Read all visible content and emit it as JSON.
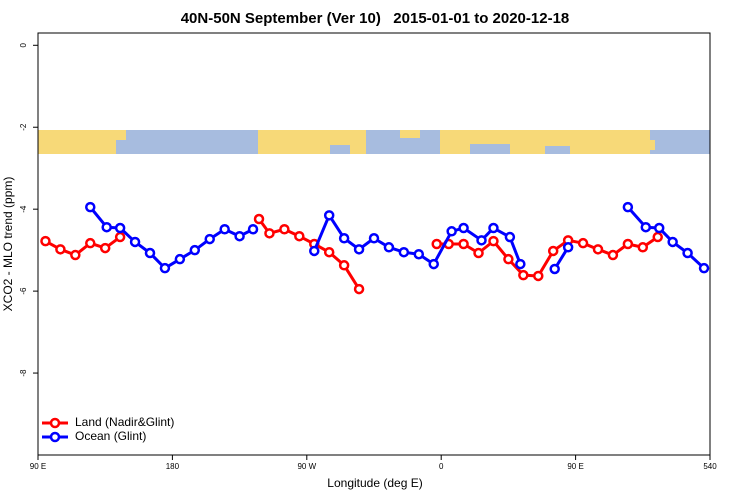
{
  "chart_data": {
    "type": "line",
    "title": "40N-50N September (Ver 10)   2015-01-01 to 2020-12-18",
    "x_label": "Longitude (deg E)",
    "y_label": "XCO2 - MLO trend (ppm)",
    "xlim": [
      90,
      540
    ],
    "xticks": [
      {
        "value": 90,
        "label": "90 E"
      },
      180,
      {
        "value": 270,
        "label": "90 W"
      },
      {
        "value": 360,
        "label": "0"
      },
      {
        "value": 450,
        "label": "90 E"
      },
      540
    ],
    "ylim": [
      -10,
      0.3
    ],
    "yticks": [
      0,
      -2,
      -4,
      -6,
      -8
    ],
    "legend": "bottom-left",
    "series": [
      {
        "name": "Land (Nadir&Glint)",
        "color": "#ff0000",
        "x": [
          95,
          105,
          115,
          125,
          135,
          145,
          190,
          238,
          245,
          255,
          265,
          275,
          285,
          295,
          305,
          330,
          357,
          365,
          375,
          385,
          395,
          405,
          415,
          425,
          435,
          445,
          455,
          465,
          475,
          485,
          495,
          505
        ],
        "values": [
          -4.78,
          -4.98,
          -5.12,
          -4.83,
          -4.95,
          -4.68,
          null,
          -4.24,
          -4.59,
          -4.49,
          -4.66,
          -4.85,
          -5.05,
          -5.37,
          -5.95,
          null,
          -4.85,
          -4.85,
          -4.85,
          -5.07,
          -4.78,
          -5.22,
          -5.61,
          -5.63,
          -5.02,
          -4.76,
          -4.83,
          -4.98,
          -5.12,
          -4.85,
          -4.93,
          -4.68
        ]
      },
      {
        "name": "Ocean (Glint)",
        "color": "#0000ff",
        "x": [
          125,
          136,
          145,
          155,
          165,
          175,
          185,
          195,
          205,
          215,
          225,
          234,
          255,
          275,
          285,
          295,
          305,
          315,
          325,
          335,
          345,
          355,
          367,
          375,
          387,
          395,
          406,
          413,
          425,
          436,
          445,
          470,
          485,
          497,
          506,
          515,
          525,
          536
        ],
        "values": [
          -3.95,
          -4.44,
          -4.46,
          -4.8,
          -5.07,
          -5.44,
          -5.22,
          -5.0,
          -4.73,
          -4.49,
          -4.66,
          -4.49,
          null,
          -5.02,
          -4.15,
          -4.71,
          -4.98,
          -4.71,
          -4.93,
          -5.05,
          -5.1,
          -5.34,
          -4.54,
          -4.46,
          -4.76,
          -4.46,
          -4.68,
          -5.34,
          null,
          -5.46,
          -4.93,
          null,
          -3.95,
          -4.44,
          -4.46,
          -4.8,
          -5.07,
          -5.44
        ]
      }
    ]
  }
}
